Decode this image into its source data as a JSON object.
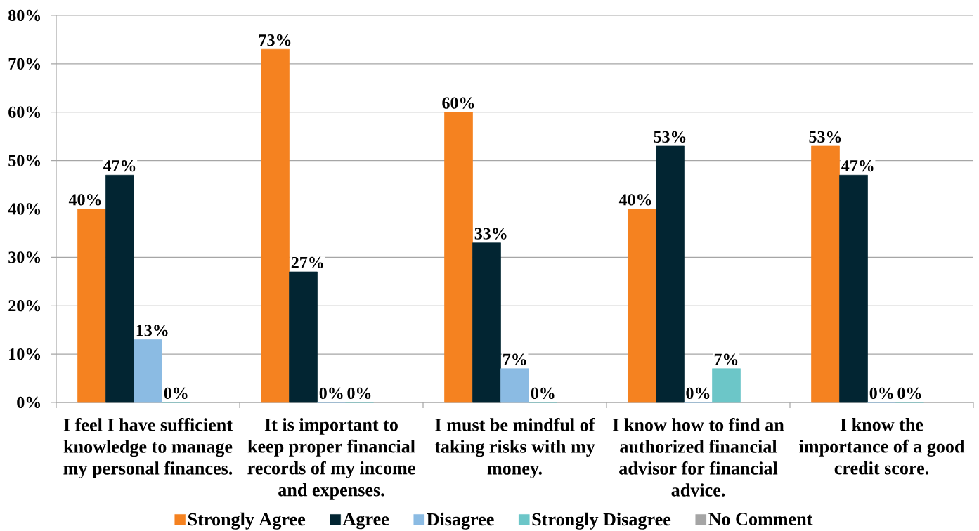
{
  "chart_data": {
    "type": "bar",
    "categories": [
      "I feel I have sufficient knowledge to manage my personal finances.",
      "It is important to keep proper financial records of my income and expenses.",
      "I must be mindful of taking risks with my money.",
      "I know how to find an authorized financial advisor for financial advice.",
      "I know the importance of a good credit score."
    ],
    "series": [
      {
        "name": "Strongly Agree",
        "color": "#f58220",
        "values": [
          40,
          73,
          60,
          40,
          53
        ],
        "value_labels": [
          "40%",
          "73%",
          "60%",
          "40%",
          "53%"
        ]
      },
      {
        "name": "Agree",
        "color": "#022532",
        "values": [
          47,
          27,
          33,
          53,
          47
        ],
        "value_labels": [
          "47%",
          "27%",
          "33%",
          "53%",
          "47%"
        ]
      },
      {
        "name": "Disagree",
        "color": "#8bbbe3",
        "values": [
          13,
          0,
          7,
          0,
          0
        ],
        "value_labels": [
          "13%",
          "0%",
          "7%",
          "0%",
          "0%"
        ]
      },
      {
        "name": "Strongly Disagree",
        "color": "#6cc6c8",
        "values": [
          0,
          0,
          0,
          7,
          0
        ],
        "value_labels": [
          "0%",
          "0%",
          "0%",
          "7%",
          "0%"
        ]
      },
      {
        "name": "No Comment",
        "color": "#a5a5a5",
        "values": [
          null,
          null,
          null,
          null,
          null
        ]
      }
    ],
    "ylim": [
      0,
      80
    ],
    "yticks": [
      {
        "value": 0,
        "label": "0%"
      },
      {
        "value": 10,
        "label": "10%"
      },
      {
        "value": 20,
        "label": "20%"
      },
      {
        "value": 30,
        "label": "30%"
      },
      {
        "value": 40,
        "label": "40%"
      },
      {
        "value": 50,
        "label": "50%"
      },
      {
        "value": 60,
        "label": "60%"
      },
      {
        "value": 70,
        "label": "70%"
      },
      {
        "value": 80,
        "label": "80%"
      }
    ],
    "grid": "y",
    "legend": "bottom"
  }
}
